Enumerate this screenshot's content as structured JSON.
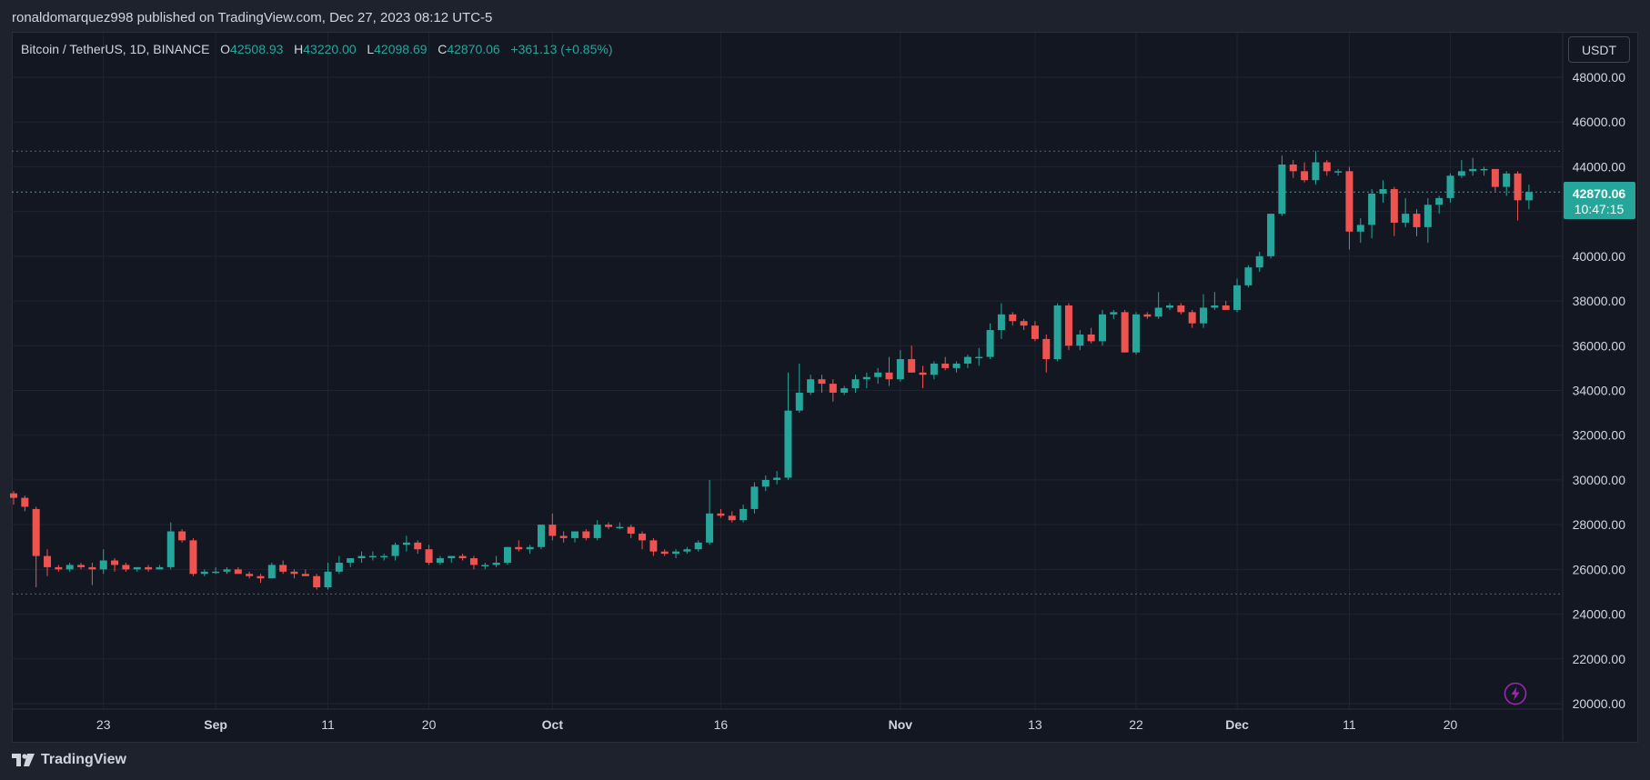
{
  "header": {
    "published": "ronaldomarquez998 published on TradingView.com, Dec 27, 2023 08:12 UTC-5"
  },
  "legend": {
    "symbol": "Bitcoin / TetherUS, 1D, BINANCE",
    "o_label": "O",
    "o_value": "42508.93",
    "h_label": "H",
    "h_value": "43220.00",
    "l_label": "L",
    "l_value": "42098.69",
    "c_label": "C",
    "c_value": "42870.06",
    "change": "+361.13 (+0.85%)"
  },
  "currency_button": "USDT",
  "price_tag": {
    "price": "42870.06",
    "countdown": "10:47:15"
  },
  "footer": {
    "brand": "TradingView"
  },
  "colors": {
    "up": "#26a69a",
    "down": "#ef5350",
    "background": "#131722",
    "grid": "#1f2430",
    "axis_text": "#d1d4dc",
    "bolt": "#9c27b0"
  },
  "icons": {
    "bolt": "lightning-bolt-icon",
    "logo": "tradingview-logo-icon"
  },
  "chart_data": {
    "type": "candlestick",
    "title": "Bitcoin / TetherUS, 1D, BINANCE",
    "ylim": [
      20000,
      49000
    ],
    "y_ticks": [
      "48000.00",
      "46000.00",
      "44000.00",
      "42000.00",
      "40000.00",
      "38000.00",
      "36000.00",
      "34000.00",
      "32000.00",
      "30000.00",
      "28000.00",
      "26000.00",
      "24000.00",
      "22000.00",
      "20000.00"
    ],
    "x_labels": [
      {
        "day": 8,
        "label": "23",
        "bold": false
      },
      {
        "day": 18,
        "label": "Sep",
        "bold": true
      },
      {
        "day": 28,
        "label": "11",
        "bold": false
      },
      {
        "day": 37,
        "label": "20",
        "bold": false
      },
      {
        "day": 48,
        "label": "Oct",
        "bold": true
      },
      {
        "day": 63,
        "label": "16",
        "bold": false
      },
      {
        "day": 79,
        "label": "Nov",
        "bold": true
      },
      {
        "day": 91,
        "label": "13",
        "bold": false
      },
      {
        "day": 100,
        "label": "22",
        "bold": false
      },
      {
        "day": 109,
        "label": "Dec",
        "bold": true
      },
      {
        "day": 119,
        "label": "11",
        "bold": false
      },
      {
        "day": 128,
        "label": "20",
        "bold": false
      }
    ],
    "dotted_levels": [
      44700,
      42870,
      24900
    ],
    "candles": [
      [
        29400,
        29500,
        28900,
        29200
      ],
      [
        29200,
        29300,
        28600,
        28800
      ],
      [
        28700,
        28800,
        25200,
        26600
      ],
      [
        26600,
        26900,
        25700,
        26100
      ],
      [
        26100,
        26200,
        25900,
        26000
      ],
      [
        26000,
        26300,
        25900,
        26200
      ],
      [
        26200,
        26300,
        26000,
        26100
      ],
      [
        26100,
        26300,
        25300,
        26000
      ],
      [
        26000,
        26900,
        25800,
        26400
      ],
      [
        26400,
        26500,
        25900,
        26200
      ],
      [
        26200,
        26300,
        25900,
        26000
      ],
      [
        26000,
        26100,
        25900,
        26100
      ],
      [
        26100,
        26200,
        25900,
        26000
      ],
      [
        26000,
        26200,
        26000,
        26100
      ],
      [
        26100,
        28100,
        26000,
        27700
      ],
      [
        27700,
        27800,
        27200,
        27300
      ],
      [
        27300,
        27400,
        25700,
        25800
      ],
      [
        25800,
        26000,
        25700,
        25900
      ],
      [
        25900,
        26100,
        25800,
        25900
      ],
      [
        25900,
        26100,
        25800,
        26000
      ],
      [
        26000,
        26100,
        25800,
        25800
      ],
      [
        25800,
        25900,
        25600,
        25700
      ],
      [
        25700,
        25800,
        25400,
        25600
      ],
      [
        25600,
        26300,
        25600,
        26200
      ],
      [
        26200,
        26400,
        25800,
        25900
      ],
      [
        25900,
        26000,
        25600,
        25800
      ],
      [
        25800,
        26000,
        25700,
        25700
      ],
      [
        25700,
        25800,
        25100,
        25200
      ],
      [
        25200,
        26300,
        25100,
        25900
      ],
      [
        25900,
        26600,
        25800,
        26300
      ],
      [
        26300,
        26500,
        26100,
        26500
      ],
      [
        26500,
        26800,
        26300,
        26600
      ],
      [
        26600,
        26800,
        26400,
        26600
      ],
      [
        26600,
        26700,
        26400,
        26600
      ],
      [
        26600,
        27200,
        26400,
        27100
      ],
      [
        27100,
        27500,
        26800,
        27200
      ],
      [
        27200,
        27300,
        26700,
        26900
      ],
      [
        26900,
        27100,
        26200,
        26300
      ],
      [
        26300,
        26600,
        26200,
        26500
      ],
      [
        26500,
        26600,
        26300,
        26600
      ],
      [
        26600,
        26700,
        26400,
        26500
      ],
      [
        26500,
        26600,
        26000,
        26200
      ],
      [
        26200,
        26300,
        26000,
        26200
      ],
      [
        26200,
        26600,
        26100,
        26300
      ],
      [
        26300,
        27000,
        26200,
        27000
      ],
      [
        27000,
        27300,
        26800,
        26900
      ],
      [
        26900,
        27100,
        26700,
        27000
      ],
      [
        27000,
        28000,
        26900,
        28000
      ],
      [
        28000,
        28500,
        27300,
        27500
      ],
      [
        27500,
        27700,
        27200,
        27400
      ],
      [
        27400,
        27700,
        27200,
        27700
      ],
      [
        27700,
        27800,
        27300,
        27400
      ],
      [
        27400,
        28200,
        27300,
        28000
      ],
      [
        28000,
        28100,
        27800,
        27900
      ],
      [
        27900,
        28100,
        27800,
        27900
      ],
      [
        27900,
        28000,
        27400,
        27600
      ],
      [
        27600,
        27700,
        26900,
        27300
      ],
      [
        27300,
        27400,
        26600,
        26800
      ],
      [
        26800,
        26900,
        26600,
        26700
      ],
      [
        26700,
        26900,
        26500,
        26800
      ],
      [
        26800,
        27000,
        26700,
        26900
      ],
      [
        26900,
        27300,
        26800,
        27200
      ],
      [
        27200,
        30000,
        27100,
        28500
      ],
      [
        28500,
        28700,
        28300,
        28400
      ],
      [
        28400,
        28600,
        28100,
        28200
      ],
      [
        28200,
        28900,
        28100,
        28700
      ],
      [
        28700,
        29900,
        28500,
        29700
      ],
      [
        29700,
        30200,
        29500,
        30000
      ],
      [
        30000,
        30400,
        29800,
        30100
      ],
      [
        30100,
        34800,
        30000,
        33100
      ],
      [
        33100,
        35200,
        33000,
        33900
      ],
      [
        33900,
        34700,
        33800,
        34500
      ],
      [
        34500,
        34700,
        33900,
        34300
      ],
      [
        34300,
        34500,
        33500,
        33900
      ],
      [
        33900,
        34200,
        33800,
        34100
      ],
      [
        34100,
        34700,
        33900,
        34500
      ],
      [
        34500,
        34800,
        34100,
        34600
      ],
      [
        34600,
        35000,
        34300,
        34800
      ],
      [
        34800,
        35500,
        34200,
        34500
      ],
      [
        34500,
        35800,
        34400,
        35400
      ],
      [
        35400,
        36000,
        34800,
        34800
      ],
      [
        34800,
        35100,
        34100,
        34700
      ],
      [
        34700,
        35300,
        34500,
        35200
      ],
      [
        35200,
        35500,
        34900,
        35000
      ],
      [
        35000,
        35300,
        34800,
        35200
      ],
      [
        35200,
        35600,
        35000,
        35500
      ],
      [
        35500,
        35900,
        35100,
        35500
      ],
      [
        35500,
        37000,
        35400,
        36700
      ],
      [
        36700,
        37900,
        36300,
        37400
      ],
      [
        37400,
        37500,
        36900,
        37100
      ],
      [
        37100,
        37200,
        36700,
        36900
      ],
      [
        36900,
        37100,
        36200,
        36300
      ],
      [
        36300,
        36500,
        34800,
        35400
      ],
      [
        35400,
        37900,
        35300,
        37800
      ],
      [
        37800,
        37900,
        35800,
        36000
      ],
      [
        36000,
        36700,
        35800,
        36500
      ],
      [
        36500,
        36800,
        36100,
        36200
      ],
      [
        36200,
        37600,
        36000,
        37400
      ],
      [
        37400,
        37600,
        37200,
        37500
      ],
      [
        37500,
        37600,
        35700,
        35700
      ],
      [
        35700,
        37500,
        35600,
        37400
      ],
      [
        37400,
        37500,
        37200,
        37300
      ],
      [
        37300,
        38400,
        37200,
        37700
      ],
      [
        37700,
        37900,
        37600,
        37800
      ],
      [
        37800,
        37900,
        37400,
        37500
      ],
      [
        37500,
        37600,
        36800,
        37000
      ],
      [
        37000,
        38300,
        36800,
        37700
      ],
      [
        37700,
        38400,
        37600,
        37800
      ],
      [
        37800,
        38000,
        37600,
        37600
      ],
      [
        37600,
        39000,
        37500,
        38700
      ],
      [
        38700,
        39600,
        38600,
        39500
      ],
      [
        39500,
        40200,
        39300,
        40000
      ],
      [
        40000,
        41900,
        39900,
        41900
      ],
      [
        41900,
        44500,
        41800,
        44100
      ],
      [
        44100,
        44300,
        43500,
        43800
      ],
      [
        43800,
        44200,
        43300,
        43400
      ],
      [
        43400,
        44700,
        43200,
        44200
      ],
      [
        44200,
        44300,
        43600,
        43800
      ],
      [
        43800,
        43900,
        43600,
        43800
      ],
      [
        43800,
        44000,
        40300,
        41100
      ],
      [
        41100,
        41700,
        40600,
        41400
      ],
      [
        41400,
        43000,
        40800,
        42800
      ],
      [
        42800,
        43400,
        42400,
        43000
      ],
      [
        43000,
        43100,
        40900,
        41500
      ],
      [
        41500,
        42600,
        41300,
        41900
      ],
      [
        41900,
        42100,
        40900,
        41300
      ],
      [
        41300,
        42600,
        40600,
        42300
      ],
      [
        42300,
        42700,
        41900,
        42600
      ],
      [
        42600,
        43700,
        42400,
        43600
      ],
      [
        43600,
        44300,
        43500,
        43800
      ],
      [
        43800,
        44400,
        43600,
        43900
      ],
      [
        43900,
        44000,
        43600,
        43900
      ],
      [
        43900,
        43900,
        42900,
        43100
      ],
      [
        43100,
        43800,
        42700,
        43700
      ],
      [
        43700,
        43800,
        41600,
        42500
      ],
      [
        42500,
        43200,
        42100,
        42870
      ]
    ]
  }
}
